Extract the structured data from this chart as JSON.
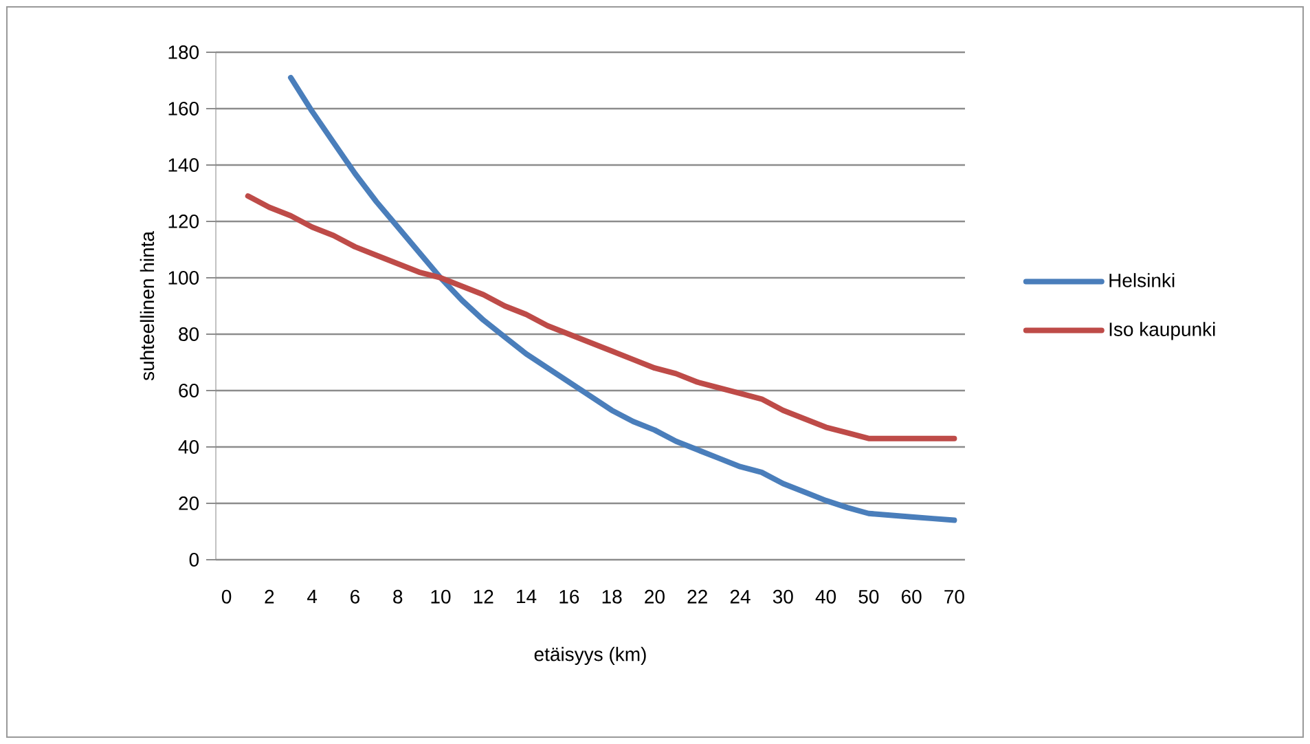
{
  "chart_data": {
    "type": "line",
    "xlabel": "etäisyys (km)",
    "ylabel": "suhteellinen hinta",
    "categories": [
      "0",
      null,
      "2",
      null,
      "4",
      null,
      "6",
      null,
      "8",
      null,
      "10",
      null,
      "12",
      null,
      "14",
      null,
      "16",
      null,
      "18",
      null,
      "20",
      null,
      "22",
      null,
      "24",
      null,
      "30",
      null,
      "40",
      null,
      "50",
      null,
      "60",
      null,
      "70"
    ],
    "series": [
      {
        "name": "Helsinki",
        "color": "#4a7ebb",
        "values": [
          null,
          null,
          null,
          171,
          159,
          148,
          137,
          127,
          118,
          109,
          100,
          92,
          85,
          79,
          73,
          68,
          63,
          58,
          53,
          49,
          46,
          42,
          39,
          36,
          33,
          31,
          27,
          24,
          21,
          18.5,
          16.4,
          15.8,
          15.2,
          14.6,
          14
        ]
      },
      {
        "name": "Iso kaupunki",
        "color": "#be4b48",
        "values": [
          null,
          129,
          125,
          122,
          118,
          115,
          111,
          108,
          105,
          102,
          100,
          97,
          94,
          90,
          87,
          83,
          80,
          77,
          74,
          71,
          68,
          66,
          63,
          61,
          59,
          57,
          53,
          50,
          47,
          45,
          43,
          43,
          43,
          43,
          43
        ]
      }
    ],
    "ylim": [
      0,
      180
    ],
    "yticks": [
      0,
      20,
      40,
      60,
      80,
      100,
      120,
      140,
      160,
      180
    ],
    "grid": "y",
    "legend": "right"
  }
}
